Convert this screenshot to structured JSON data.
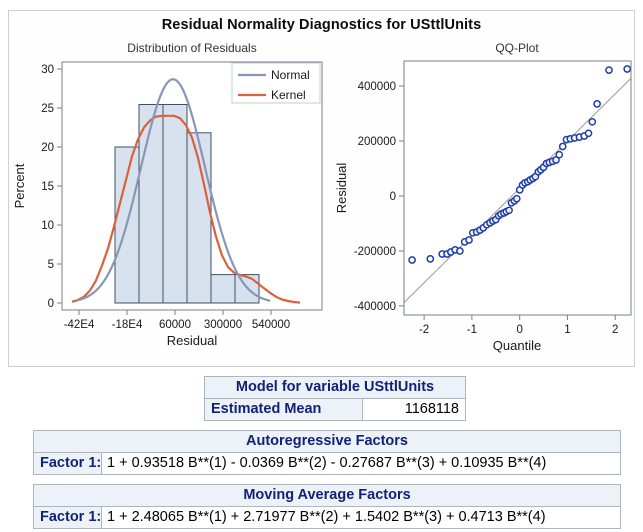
{
  "report": {
    "title": "Residual Normality Diagnostics for USttlUnits"
  },
  "chart_data": [
    {
      "type": "histogram",
      "title": "Distribution of Residuals",
      "xlabel": "Residual",
      "ylabel": "Percent",
      "xlim": [
        -505000,
        795000
      ],
      "ylim": [
        -0.9,
        30.9
      ],
      "xticks": [
        {
          "v": -420000,
          "label": "-42E4"
        },
        {
          "v": -180000,
          "label": "-18E4"
        },
        {
          "v": 60000,
          "label": "60000"
        },
        {
          "v": 300000,
          "label": "300000"
        },
        {
          "v": 540000,
          "label": "540000"
        }
      ],
      "yticks": [
        0,
        5,
        10,
        15,
        20,
        25,
        30
      ],
      "bin_width": 120000,
      "bin_centers": [
        -180000,
        -60000,
        60000,
        180000,
        300000,
        420000
      ],
      "bar_heights_pct": [
        20.0,
        25.45,
        25.45,
        21.82,
        3.64,
        3.64
      ],
      "bar_fill": "#d8e1ee",
      "bar_stroke": "#3d4f66",
      "normal_curve": {
        "label": "Normal",
        "color": "#8996b5",
        "mean": 50000,
        "sd": 160000,
        "peak": 28.7,
        "x_range": [
          -432000,
          545000
        ]
      },
      "kernel_curve": {
        "label": "Kernel",
        "color": "#d9623c",
        "points": [
          [
            -455000,
            0.15
          ],
          [
            -425000,
            0.4
          ],
          [
            -395000,
            0.8
          ],
          [
            -365000,
            1.6
          ],
          [
            -335000,
            2.9
          ],
          [
            -305000,
            4.8
          ],
          [
            -275000,
            7.0
          ],
          [
            -245000,
            9.8
          ],
          [
            -215000,
            12.8
          ],
          [
            -185000,
            15.8
          ],
          [
            -155000,
            18.8
          ],
          [
            -125000,
            21.0
          ],
          [
            -95000,
            22.5
          ],
          [
            -65000,
            23.4
          ],
          [
            -35000,
            23.9
          ],
          [
            -5000,
            24.0
          ],
          [
            25000,
            24.0
          ],
          [
            55000,
            24.0
          ],
          [
            85000,
            23.7
          ],
          [
            115000,
            22.8
          ],
          [
            145000,
            21.2
          ],
          [
            175000,
            18.6
          ],
          [
            205000,
            15.2
          ],
          [
            235000,
            11.6
          ],
          [
            265000,
            8.5
          ],
          [
            295000,
            6.1
          ],
          [
            325000,
            4.6
          ],
          [
            355000,
            3.9
          ],
          [
            385000,
            3.6
          ],
          [
            415000,
            3.4
          ],
          [
            445000,
            3.1
          ],
          [
            475000,
            2.5
          ],
          [
            505000,
            1.9
          ],
          [
            535000,
            1.3
          ],
          [
            565000,
            0.8
          ],
          [
            595000,
            0.45
          ],
          [
            625000,
            0.25
          ],
          [
            655000,
            0.12
          ],
          [
            685000,
            0.05
          ]
        ]
      },
      "legend": {
        "entries": [
          "Normal",
          "Kernel"
        ],
        "position": "top-right"
      }
    },
    {
      "type": "scatter",
      "title": "QQ-Plot",
      "xlabel": "Quantile",
      "ylabel": "Residual",
      "xlim": [
        -2.42,
        2.33
      ],
      "ylim": [
        -433000,
        491000
      ],
      "xticks": [
        -2,
        -1,
        0,
        1,
        2
      ],
      "yticks": [
        -400000,
        -200000,
        0,
        200000,
        400000
      ],
      "marker_color": "#1e3ea6",
      "ref_line": {
        "color": "#a9a9a9",
        "x1": -2.42,
        "y1": -388000,
        "x2": 2.33,
        "y2": 428000
      },
      "points": [
        [
          -2.25,
          -233000
        ],
        [
          -1.87,
          -229000
        ],
        [
          -1.62,
          -211000
        ],
        [
          -1.52,
          -211000
        ],
        [
          -1.44,
          -204000
        ],
        [
          -1.35,
          -196000
        ],
        [
          -1.25,
          -200000
        ],
        [
          -1.15,
          -167000
        ],
        [
          -1.06,
          -160000
        ],
        [
          -0.98,
          -134000
        ],
        [
          -0.9,
          -131000
        ],
        [
          -0.83,
          -124000
        ],
        [
          -0.76,
          -116000
        ],
        [
          -0.69,
          -105000
        ],
        [
          -0.62,
          -98000
        ],
        [
          -0.56,
          -91000
        ],
        [
          -0.5,
          -86000
        ],
        [
          -0.44,
          -72000
        ],
        [
          -0.39,
          -66000
        ],
        [
          -0.33,
          -62000
        ],
        [
          -0.28,
          -57000
        ],
        [
          -0.22,
          -52000
        ],
        [
          -0.17,
          -25000
        ],
        [
          -0.11,
          -18000
        ],
        [
          -0.06,
          -10000
        ],
        [
          0,
          22000
        ],
        [
          0.06,
          40000
        ],
        [
          0.11,
          48000
        ],
        [
          0.17,
          52000
        ],
        [
          0.22,
          58000
        ],
        [
          0.28,
          64000
        ],
        [
          0.33,
          70000
        ],
        [
          0.39,
          88000
        ],
        [
          0.44,
          95000
        ],
        [
          0.5,
          104000
        ],
        [
          0.56,
          118000
        ],
        [
          0.62,
          122000
        ],
        [
          0.69,
          126000
        ],
        [
          0.76,
          131000
        ],
        [
          0.83,
          150000
        ],
        [
          0.9,
          180000
        ],
        [
          0.98,
          205000
        ],
        [
          1.06,
          208000
        ],
        [
          1.15,
          211000
        ],
        [
          1.25,
          214000
        ],
        [
          1.35,
          218000
        ],
        [
          1.44,
          228000
        ],
        [
          1.52,
          270000
        ],
        [
          1.62,
          335000
        ],
        [
          1.87,
          458000
        ],
        [
          2.25,
          462000
        ]
      ]
    }
  ],
  "tables": {
    "model": {
      "title": "Model for variable USttlUnits",
      "rows": [
        {
          "label": "Estimated Mean",
          "value": "1168118"
        }
      ]
    },
    "ar": {
      "title": "Autoregressive Factors",
      "rows": [
        {
          "label": "Factor 1:",
          "value": "1 + 0.93518 B**(1) - 0.0369 B**(2) - 0.27687 B**(3) + 0.10935 B**(4)"
        }
      ]
    },
    "ma": {
      "title": "Moving Average Factors",
      "rows": [
        {
          "label": "Factor 1:",
          "value": "1 + 2.48065 B**(1) + 2.71977 B**(2) + 1.5402 B**(3) + 0.4713 B**(4)"
        }
      ]
    }
  },
  "colors": {
    "header_bg": "#edf2f9",
    "header_text": "#112277",
    "table_border": "#aeb6bd",
    "plot_frame": "#73808c",
    "panel_border": "#d0d0d0"
  }
}
